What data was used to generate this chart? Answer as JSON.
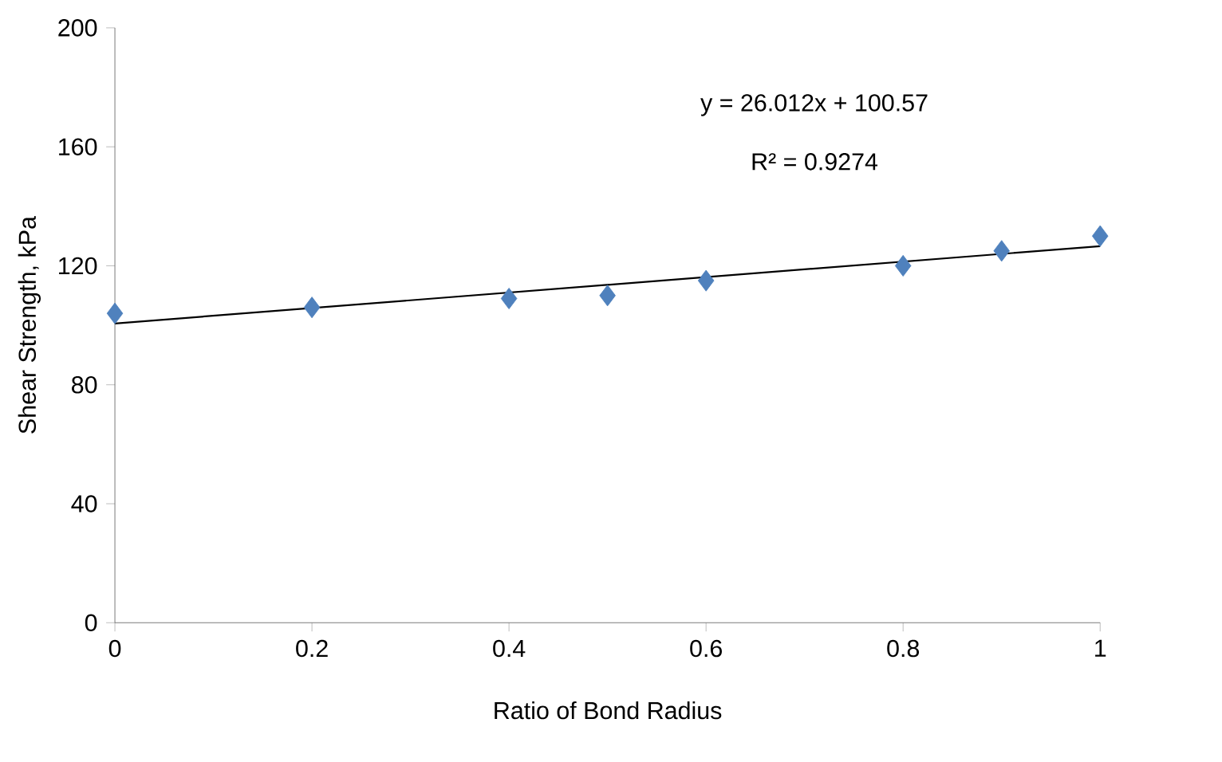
{
  "chart_data": {
    "type": "scatter",
    "xlabel": "Ratio of Bond Radius",
    "ylabel": "Shear Strength, kPa",
    "xlim": [
      0,
      1
    ],
    "xticks": [
      0,
      0.2,
      0.4,
      0.6,
      0.8,
      1
    ],
    "ylim": [
      0,
      200
    ],
    "yticks": [
      0,
      40,
      80,
      120,
      160,
      200
    ],
    "grid": false,
    "marker": "diamond",
    "annotations": [
      "y = 26.012x + 100.57",
      "R² = 0.9274"
    ],
    "series": [
      {
        "color": "#4f81bd",
        "x": [
          0,
          0.2,
          0.4,
          0.5,
          0.6,
          0.8,
          0.9,
          1
        ],
        "values": [
          104,
          106,
          109,
          110,
          115,
          120,
          125,
          130
        ]
      },
      {
        "type": "line",
        "color": "#000000",
        "marker": "none",
        "x": [
          0,
          1
        ],
        "values": [
          100.6,
          126.6
        ]
      }
    ]
  }
}
